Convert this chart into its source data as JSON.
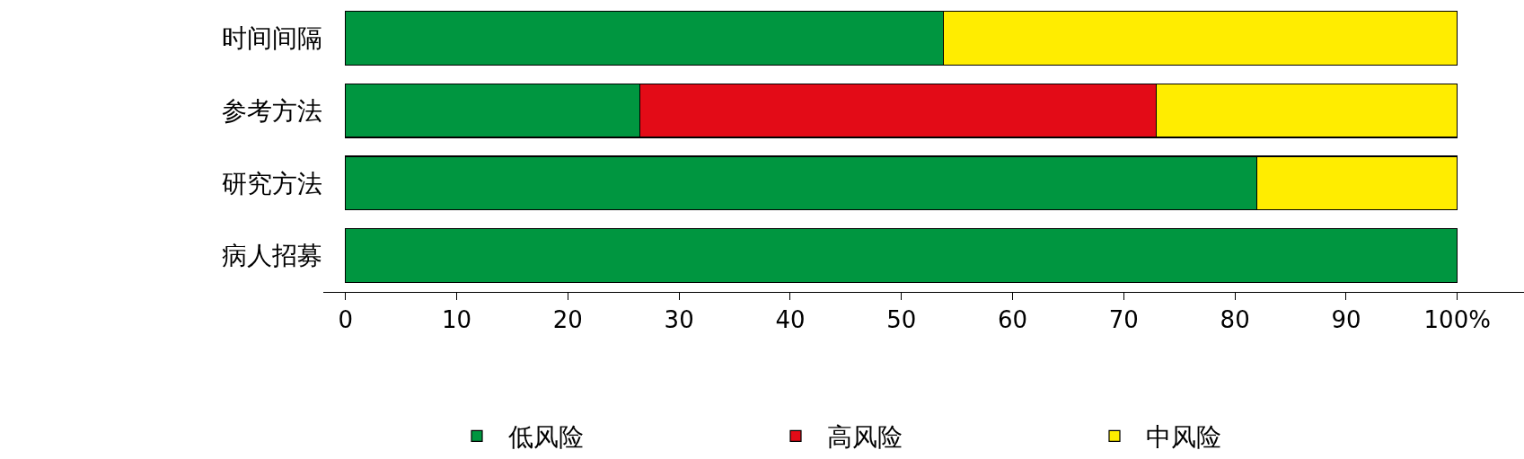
{
  "chart_data": {
    "type": "bar",
    "orientation": "horizontal",
    "stacked": true,
    "categories": [
      "时间间隔",
      "参考方法",
      "研究方法",
      "病人招募"
    ],
    "series": [
      {
        "name": "低风险",
        "color": "#009640",
        "values": [
          53.8,
          26.5,
          82,
          100
        ]
      },
      {
        "name": "高风险",
        "color": "#e30b17",
        "values": [
          null,
          46.4,
          null,
          null
        ]
      },
      {
        "name": "中风险",
        "color": "#ffed00",
        "values": [
          46.2,
          27.1,
          18,
          null
        ]
      }
    ],
    "xlim": [
      -2,
      106
    ],
    "xticks": [
      0,
      10,
      20,
      30,
      40,
      50,
      60,
      70,
      80,
      90,
      {
        "value": 100,
        "label": "100%"
      }
    ],
    "legend": "bottom"
  }
}
